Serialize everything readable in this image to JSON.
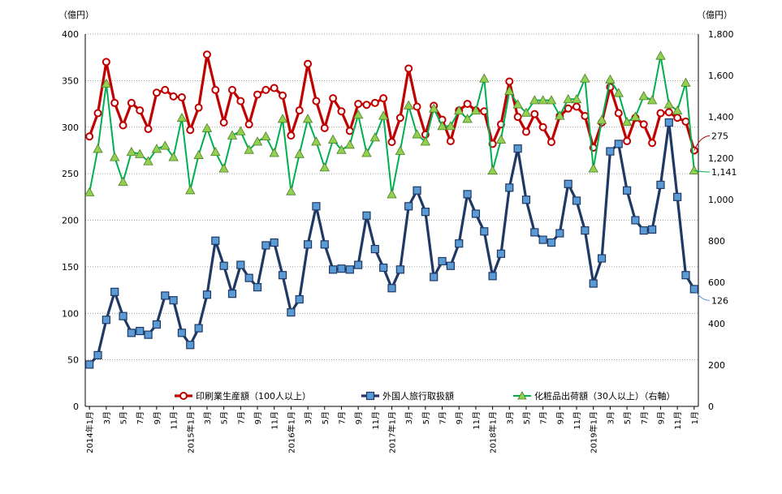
{
  "chart_data": {
    "type": "line",
    "left_unit": "（億円）",
    "right_unit": "（億円）",
    "left_ylim": [
      0,
      400
    ],
    "left_yticks": [
      0,
      50,
      100,
      150,
      200,
      250,
      300,
      350,
      400
    ],
    "right_ylim": [
      0,
      1800
    ],
    "right_yticks": [
      "0",
      "200",
      "400",
      "600",
      "800",
      "1,000",
      "1,200",
      "1,400",
      "1,600",
      "1,800"
    ],
    "grid": "horizontal-dotted",
    "legend_position": "bottom-center",
    "x_tick_labels": [
      "2014年1月",
      "3月",
      "5月",
      "7月",
      "9月",
      "11月",
      "2015年1月",
      "3月",
      "5月",
      "7月",
      "9月",
      "11月",
      "2016年1月",
      "3月",
      "5月",
      "7月",
      "9月",
      "11月",
      "2017年1月",
      "3月",
      "5月",
      "7月",
      "9月",
      "11月",
      "2018年1月",
      "3月",
      "5月",
      "7月",
      "9月",
      "11月",
      "2019年1月",
      "3月",
      "5月",
      "7月",
      "9月",
      "11月",
      "1月"
    ],
    "x": [
      "2014-01",
      "2014-02",
      "2014-03",
      "2014-04",
      "2014-05",
      "2014-06",
      "2014-07",
      "2014-08",
      "2014-09",
      "2014-10",
      "2014-11",
      "2014-12",
      "2015-01",
      "2015-02",
      "2015-03",
      "2015-04",
      "2015-05",
      "2015-06",
      "2015-07",
      "2015-08",
      "2015-09",
      "2015-10",
      "2015-11",
      "2015-12",
      "2016-01",
      "2016-02",
      "2016-03",
      "2016-04",
      "2016-05",
      "2016-06",
      "2016-07",
      "2016-08",
      "2016-09",
      "2016-10",
      "2016-11",
      "2016-12",
      "2017-01",
      "2017-02",
      "2017-03",
      "2017-04",
      "2017-05",
      "2017-06",
      "2017-07",
      "2017-08",
      "2017-09",
      "2017-10",
      "2017-11",
      "2017-12",
      "2018-01",
      "2018-02",
      "2018-03",
      "2018-04",
      "2018-05",
      "2018-06",
      "2018-07",
      "2018-08",
      "2018-09",
      "2018-10",
      "2018-11",
      "2018-12",
      "2019-01",
      "2019-02",
      "2019-03",
      "2019-04",
      "2019-05",
      "2019-06",
      "2019-07",
      "2019-08",
      "2019-09",
      "2019-10",
      "2019-11",
      "2019-12",
      "2020-01"
    ],
    "series": [
      {
        "name": "印刷業生産額（100人以上）",
        "axis": "left",
        "color": "#c00000",
        "marker": "circle",
        "end_label": "275",
        "values": [
          290,
          315,
          370,
          326,
          302,
          326,
          318,
          298,
          337,
          340,
          333,
          332,
          297,
          321,
          378,
          340,
          305,
          340,
          328,
          303,
          335,
          340,
          342,
          334,
          291,
          318,
          368,
          328,
          299,
          331,
          317,
          296,
          325,
          324,
          326,
          331,
          284,
          310,
          363,
          322,
          292,
          323,
          308,
          285,
          318,
          325,
          318,
          317,
          282,
          303,
          349,
          311,
          295,
          314,
          300,
          284,
          312,
          320,
          322,
          312,
          278,
          305,
          343,
          315,
          285,
          310,
          303,
          283,
          315,
          316,
          310,
          306,
          275
        ]
      },
      {
        "name": "外国人旅行取扱額",
        "axis": "left",
        "color": "#1f3864",
        "marker": "square",
        "end_label": "126",
        "values": [
          45,
          55,
          93,
          123,
          97,
          79,
          81,
          77,
          88,
          119,
          114,
          79,
          66,
          84,
          120,
          178,
          151,
          121,
          152,
          138,
          128,
          173,
          176,
          141,
          101,
          115,
          174,
          215,
          174,
          147,
          148,
          147,
          152,
          205,
          169,
          149,
          127,
          147,
          215,
          232,
          209,
          139,
          156,
          151,
          175,
          228,
          207,
          188,
          140,
          164,
          235,
          277,
          222,
          187,
          179,
          176,
          186,
          239,
          221,
          189,
          132,
          159,
          274,
          282,
          232,
          200,
          189,
          190,
          238,
          305,
          225,
          141,
          126
        ]
      },
      {
        "name": "化粧品出荷額（30人以上）（右軸）",
        "axis": "right",
        "color": "#00b050",
        "marker": "triangle",
        "end_label": "1,141",
        "values": [
          1035,
          1245,
          1560,
          1205,
          1085,
          1230,
          1220,
          1185,
          1245,
          1260,
          1205,
          1395,
          1045,
          1215,
          1345,
          1230,
          1150,
          1310,
          1330,
          1240,
          1280,
          1305,
          1225,
          1390,
          1040,
          1220,
          1390,
          1280,
          1155,
          1290,
          1240,
          1265,
          1410,
          1225,
          1300,
          1405,
          1025,
          1235,
          1455,
          1315,
          1280,
          1440,
          1355,
          1355,
          1430,
          1390,
          1430,
          1585,
          1140,
          1290,
          1525,
          1460,
          1420,
          1480,
          1480,
          1480,
          1405,
          1485,
          1485,
          1585,
          1150,
          1385,
          1580,
          1515,
          1375,
          1400,
          1500,
          1480,
          1695,
          1460,
          1430,
          1565,
          1141
        ]
      }
    ]
  }
}
